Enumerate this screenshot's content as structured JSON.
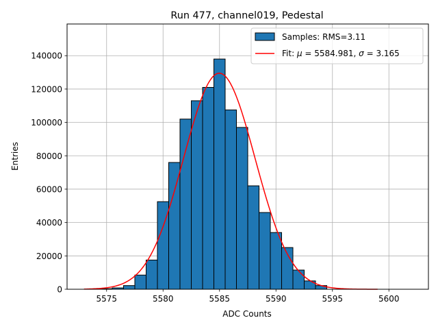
{
  "chart_data": {
    "type": "bar",
    "title": "Run 477, channel019, Pedestal",
    "xlabel": "ADC Counts",
    "ylabel": "Entries",
    "xlim": [
      5571.5,
      5603.5
    ],
    "ylim": [
      0,
      159000
    ],
    "grid": true,
    "legend_position": "top-right",
    "xticks": [
      5575,
      5580,
      5585,
      5590,
      5595,
      5600
    ],
    "xtick_labels": [
      "5575",
      "5580",
      "5585",
      "5590",
      "5595",
      "5600"
    ],
    "yticks": [
      0,
      20000,
      40000,
      60000,
      80000,
      100000,
      120000,
      140000
    ],
    "ytick_labels": [
      "0",
      "20000",
      "40000",
      "60000",
      "80000",
      "100000",
      "120000",
      "140000"
    ],
    "bin_width": 1,
    "categories": [
      5575,
      5576,
      5577,
      5578,
      5579,
      5580,
      5581,
      5582,
      5583,
      5584,
      5585,
      5586,
      5587,
      5588,
      5589,
      5590,
      5591,
      5592,
      5593,
      5594
    ],
    "values": [
      300,
      800,
      2200,
      8500,
      17500,
      52500,
      76000,
      102000,
      113000,
      121000,
      138000,
      107500,
      97000,
      62000,
      46000,
      34000,
      25000,
      11500,
      5000,
      2200
    ],
    "series": [
      {
        "name": "Samples: RMS=3.11",
        "type": "histogram",
        "color": "#1f77b4",
        "edge_color": "#000000"
      },
      {
        "name": "Fit: μ = 5584.981, σ = 3.165",
        "type": "gaussian",
        "color": "#ff0000",
        "mu": 5584.981,
        "sigma": 3.165,
        "amplitude": 129500,
        "x_range": [
          5573,
          5599
        ]
      }
    ],
    "legend": {
      "samples_label": "Samples: RMS=3.11",
      "fit_prefix": "Fit: ",
      "mu_symbol": "μ",
      "fit_middle": " = 5584.981, ",
      "sigma_symbol": "σ",
      "fit_suffix": " = 3.165"
    }
  }
}
